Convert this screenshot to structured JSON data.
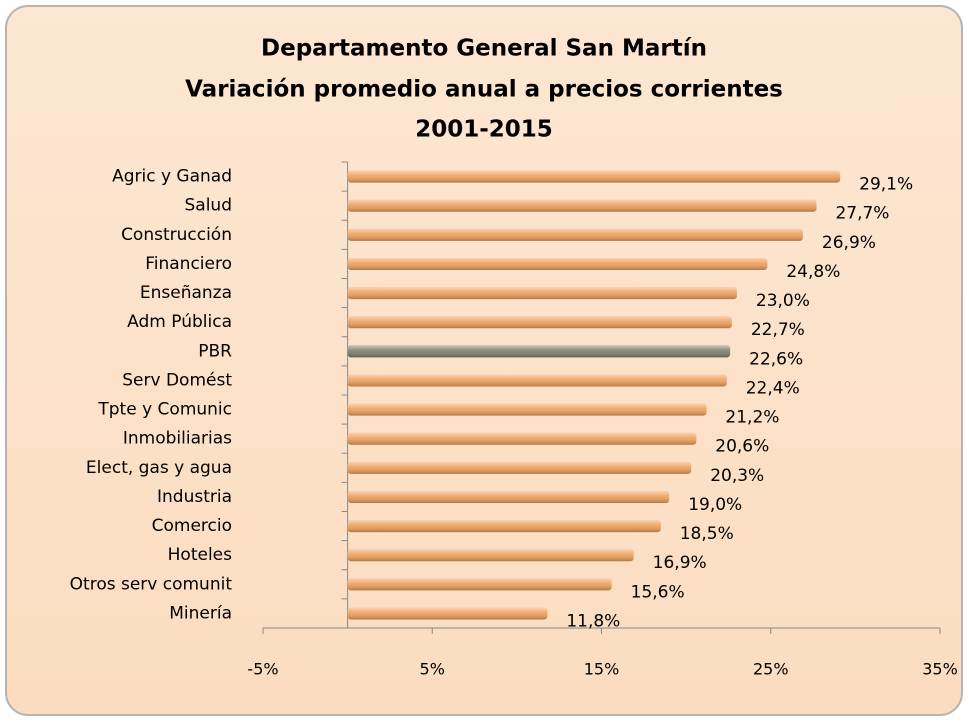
{
  "chart_data": {
    "type": "bar",
    "orientation": "horizontal",
    "title": [
      "Departamento General San Martín",
      "Variación promedio anual a precios corrientes",
      "2001-2015"
    ],
    "categories": [
      "Agric y Ganad",
      "Salud",
      "Construcción",
      "Financiero",
      "Enseñanza",
      "Adm Pública",
      "PBR",
      "Serv Domést",
      "Tpte y Comunic",
      "Inmobiliarias",
      "Elect, gas y agua",
      "Industria",
      "Comercio",
      "Hoteles",
      "Otros serv comunit",
      "Minería"
    ],
    "values": [
      29.1,
      27.7,
      26.9,
      24.8,
      23.0,
      22.7,
      22.6,
      22.4,
      21.2,
      20.6,
      20.3,
      19.0,
      18.5,
      16.9,
      15.6,
      11.8
    ],
    "value_labels": [
      "29,1%",
      "27,7%",
      "26,9%",
      "24,8%",
      "23,0%",
      "22,7%",
      "22,6%",
      "22,4%",
      "21,2%",
      "20,6%",
      "20,3%",
      "19,0%",
      "18,5%",
      "16,9%",
      "15,6%",
      "11,8%"
    ],
    "colors": [
      "#ee9f5a",
      "#ee9f5a",
      "#ee9f5a",
      "#ee9f5a",
      "#ee9f5a",
      "#ee9f5a",
      "#7f7d68",
      "#ee9f5a",
      "#ee9f5a",
      "#ee9f5a",
      "#ee9f5a",
      "#ee9f5a",
      "#ee9f5a",
      "#ee9f5a",
      "#ee9f5a",
      "#ee9f5a"
    ],
    "xlim": [
      -5,
      35
    ],
    "xticks": [
      {
        "value": -5,
        "label": "-5%"
      },
      {
        "value": 5,
        "label": "5%"
      },
      {
        "value": 15,
        "label": "15%"
      },
      {
        "value": 25,
        "label": "25%"
      },
      {
        "value": 35,
        "label": "35%"
      }
    ],
    "grid": false
  }
}
